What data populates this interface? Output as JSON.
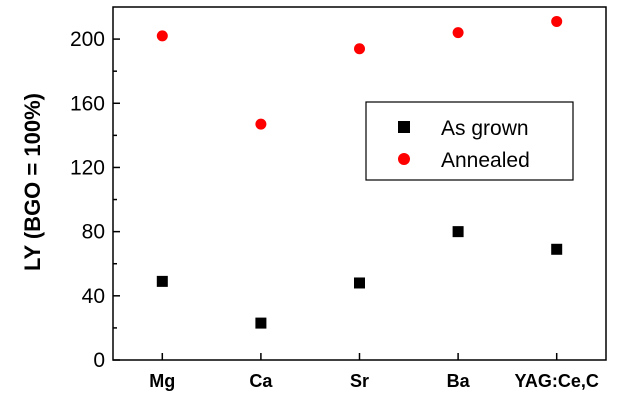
{
  "chart_data": {
    "type": "scatter",
    "categories": [
      "Mg",
      "Ca",
      "Sr",
      "Ba",
      "YAG:Ce,C"
    ],
    "series": [
      {
        "name": "As grown",
        "values": [
          49,
          23,
          48,
          80,
          69
        ],
        "color": "#000000",
        "marker": "square"
      },
      {
        "name": "Annealed",
        "values": [
          202,
          147,
          194,
          204,
          211
        ],
        "color": "#ff0000",
        "marker": "circle"
      }
    ],
    "xlabel": "",
    "ylabel": "LY (BGO = 100%)",
    "ylim": [
      0,
      220
    ],
    "yticks": [
      0,
      40,
      80,
      120,
      160,
      200
    ],
    "grid": false,
    "legend_position": "center-right"
  }
}
